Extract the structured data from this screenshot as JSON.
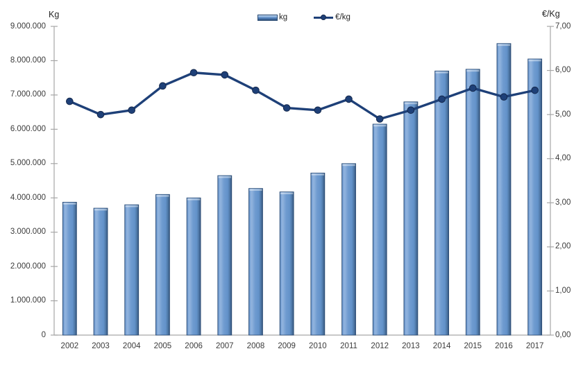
{
  "colors": {
    "bar_main": "#4F81BD",
    "bar_highlight": "#92B4DE",
    "bar_edge_dark": "#314F77",
    "bar_stroke": "#2B4C75",
    "line": "#1E4078",
    "marker_stroke": "#15294D",
    "axis": "#A6A6A6",
    "text": "#3B3B3B"
  },
  "chart_data": {
    "type": "combo-bar-line",
    "grid": false,
    "categories": [
      "2002",
      "2003",
      "2004",
      "2005",
      "2006",
      "2007",
      "2008",
      "2009",
      "2010",
      "2011",
      "2012",
      "2013",
      "2014",
      "2015",
      "2016",
      "2017"
    ],
    "series": [
      {
        "name": "kg",
        "type": "bar",
        "axis": "left",
        "values": [
          3875000,
          3700000,
          3800000,
          4100000,
          4000000,
          4650000,
          4275000,
          4175000,
          4725000,
          5000000,
          6150000,
          6800000,
          7700000,
          7750000,
          8500000,
          8050000
        ]
      },
      {
        "name": "€/kg",
        "type": "line",
        "axis": "right",
        "values": [
          5.3,
          5.0,
          5.1,
          5.65,
          5.95,
          5.9,
          5.55,
          5.15,
          5.1,
          5.35,
          4.9,
          5.1,
          5.35,
          5.6,
          5.4,
          5.55
        ]
      }
    ],
    "left_axis": {
      "title": "Kg",
      "min": 0,
      "max": 9000000,
      "step": 1000000,
      "tick_labels": [
        "0",
        "1.000.000",
        "2.000.000",
        "3.000.000",
        "4.000.000",
        "5.000.000",
        "6.000.000",
        "7.000.000",
        "8.000.000",
        "9.000.000"
      ]
    },
    "right_axis": {
      "title": "€/Kg",
      "min": 0,
      "max": 7,
      "step": 1,
      "tick_labels": [
        "0,00",
        "1,00",
        "2,00",
        "3,00",
        "4,00",
        "5,00",
        "6,00",
        "7,00"
      ]
    },
    "legend": {
      "position": "top-center",
      "entries": [
        {
          "label": "kg",
          "swatch": "bar"
        },
        {
          "label": "€/kg",
          "swatch": "line-marker"
        }
      ]
    }
  }
}
